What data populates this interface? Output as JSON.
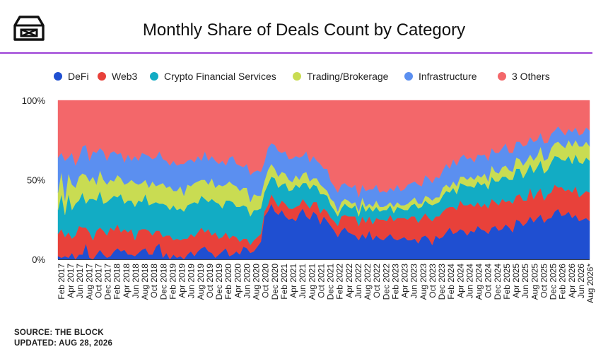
{
  "header": {
    "title": "Monthly Share of Deals Count by Category"
  },
  "footer": {
    "source": "SOURCE: THE BLOCK",
    "updated": "UPDATED: AUG 28, 2026"
  },
  "chart_data": {
    "type": "area",
    "stacked": "percent",
    "ylim": [
      0,
      100
    ],
    "yticks": [
      "0%",
      "50%",
      "100%"
    ],
    "xtick_labels": [
      "Feb 2017",
      "Apr 2017",
      "Jun 2017",
      "Aug 2017",
      "Oct 2017",
      "Dec 2017",
      "Feb 2018",
      "Apr 2018",
      "Jun 2018",
      "Aug 2018",
      "Oct 2018",
      "Dec 2018",
      "Feb 2019",
      "Apr 2019",
      "Jun 2019",
      "Aug 2019",
      "Oct 2019",
      "Dec 2019",
      "Feb 2020",
      "Apr 2020",
      "Jun 2020",
      "Aug 2020",
      "Oct 2020",
      "Dec 2020",
      "Feb 2021",
      "Apr 2021",
      "Jun 2021",
      "Aug 2021",
      "Oct 2021",
      "Dec 2021",
      "Feb 2022",
      "Apr 2022",
      "Jun 2022",
      "Aug 2022",
      "Oct 2022",
      "Dec 2022",
      "Feb 2023",
      "Apr 2023",
      "Jun 2023",
      "Aug 2023",
      "Oct 2023",
      "Dec 2023",
      "Feb 2024",
      "Apr 2024",
      "Jun 2024",
      "Aug 2024",
      "Oct 2024",
      "Dec 2024",
      "Feb 2025",
      "Apr 2025",
      "Jun 2025",
      "Aug 2025",
      "Oct 2025",
      "Dec 2025",
      "Feb 2026",
      "Apr 2026",
      "Jun 2026",
      "Aug 2026*"
    ],
    "legend_position": "top",
    "series": [
      {
        "name": "DeFi",
        "color": "#1f4fd1",
        "values": [
          2,
          1,
          2,
          1,
          4,
          0,
          3,
          3,
          10,
          1,
          0,
          3,
          6,
          3,
          1,
          2,
          5,
          7,
          5,
          6,
          3,
          3,
          2,
          4,
          6,
          7,
          3,
          3,
          8,
          10,
          1,
          4,
          0,
          3,
          1,
          2,
          0,
          3,
          5,
          2,
          5,
          7,
          8,
          5,
          4,
          1,
          3,
          5,
          7,
          2,
          3,
          5,
          3,
          8,
          7,
          4,
          5,
          8,
          11,
          27,
          30,
          35,
          30,
          28,
          31,
          27,
          25,
          26,
          24,
          29,
          32,
          27,
          25,
          30,
          28,
          22,
          27,
          24,
          21,
          18,
          14,
          18,
          20,
          17,
          16,
          15,
          12,
          16,
          13,
          18,
          12,
          15,
          13,
          12,
          14,
          16,
          13,
          12,
          13,
          14,
          12,
          12,
          13,
          10,
          14,
          15,
          13,
          9,
          15,
          13,
          14,
          17,
          20,
          16,
          17,
          19,
          18,
          15,
          18,
          17,
          21,
          19,
          18,
          16,
          20,
          21,
          18,
          19,
          22,
          20,
          17,
          25,
          24,
          21,
          23,
          27,
          24,
          26,
          29,
          23,
          25,
          26,
          30,
          33,
          27,
          28,
          30,
          26,
          28,
          24,
          25,
          26,
          24
        ]
      },
      {
        "name": "Web3",
        "color": "#e8413a",
        "values": [
          14,
          18,
          12,
          16,
          9,
          15,
          18,
          17,
          10,
          16,
          12,
          15,
          14,
          15,
          14,
          18,
          13,
          15,
          12,
          13,
          14,
          16,
          10,
          14,
          13,
          12,
          15,
          12,
          10,
          8,
          13,
          11,
          15,
          9,
          12,
          10,
          13,
          10,
          11,
          12,
          12,
          13,
          9,
          14,
          11,
          16,
          10,
          9,
          10,
          11,
          12,
          9,
          8,
          5,
          6,
          5,
          7,
          6,
          5,
          3,
          4,
          6,
          7,
          5,
          6,
          8,
          7,
          6,
          9,
          5,
          6,
          8,
          7,
          6,
          8,
          7,
          5,
          6,
          5,
          6,
          7,
          9,
          8,
          10,
          11,
          12,
          9,
          11,
          10,
          9,
          10,
          11,
          12,
          13,
          10,
          12,
          11,
          14,
          13,
          12,
          13,
          15,
          14,
          13,
          12,
          14,
          13,
          15,
          12,
          14,
          16,
          15,
          13,
          17,
          14,
          18,
          16,
          19,
          17,
          16,
          15,
          14,
          17,
          16,
          18,
          15,
          16,
          19,
          14,
          17,
          18,
          15,
          17,
          16,
          14,
          18,
          15,
          16,
          17,
          14,
          15,
          16,
          17,
          14,
          18,
          15,
          14,
          16,
          18,
          15,
          16,
          17,
          18
        ]
      },
      {
        "name": "Crypto Financial Services",
        "color": "#12acc4",
        "values": [
          15,
          22,
          14,
          24,
          18,
          20,
          16,
          22,
          15,
          21,
          26,
          19,
          23,
          17,
          21,
          18,
          22,
          17,
          24,
          16,
          20,
          18,
          21,
          19,
          17,
          22,
          16,
          20,
          18,
          17,
          21,
          19,
          16,
          22,
          18,
          20,
          17,
          21,
          19,
          22,
          18,
          20,
          21,
          17,
          23,
          19,
          22,
          18,
          20,
          24,
          21,
          19,
          22,
          21,
          20,
          18,
          19,
          17,
          16,
          12,
          13,
          11,
          14,
          12,
          10,
          13,
          11,
          12,
          14,
          11,
          10,
          13,
          12,
          11,
          10,
          12,
          9,
          10,
          8,
          7,
          6,
          5,
          7,
          6,
          5,
          7,
          6,
          8,
          7,
          6,
          8,
          7,
          5,
          6,
          7,
          6,
          5,
          7,
          6,
          5,
          6,
          7,
          8,
          9,
          7,
          8,
          9,
          10,
          8,
          9,
          10,
          11,
          9,
          12,
          10,
          11,
          13,
          12,
          11,
          12,
          13,
          14,
          13,
          12,
          14,
          13,
          15,
          14,
          16,
          13,
          15,
          17,
          16,
          14,
          18,
          15,
          17,
          16,
          18,
          17,
          15,
          19,
          18,
          20,
          17,
          19,
          21,
          18,
          20,
          22,
          19,
          21,
          20
        ]
      },
      {
        "name": "Trading/Brokerage",
        "color": "#c9dc52",
        "values": [
          11,
          14,
          9,
          13,
          16,
          10,
          15,
          12,
          18,
          11,
          14,
          10,
          13,
          15,
          11,
          12,
          9,
          14,
          10,
          12,
          11,
          13,
          15,
          10,
          12,
          9,
          11,
          14,
          10,
          12,
          13,
          11,
          15,
          9,
          12,
          14,
          10,
          13,
          11,
          12,
          14,
          10,
          12,
          11,
          13,
          9,
          12,
          14,
          10,
          12,
          11,
          13,
          10,
          11,
          12,
          9,
          10,
          9,
          8,
          7,
          9,
          8,
          6,
          7,
          8,
          6,
          7,
          5,
          6,
          5,
          6,
          7,
          5,
          4,
          5,
          6,
          4,
          3,
          4,
          5,
          3,
          4,
          3,
          4,
          3,
          2,
          3,
          4,
          3,
          2,
          3,
          4,
          3,
          2,
          3,
          2,
          4,
          3,
          2,
          3,
          4,
          3,
          4,
          3,
          2,
          3,
          4,
          3,
          4,
          3,
          5,
          4,
          3,
          4,
          5,
          4,
          5,
          4,
          6,
          5,
          4,
          5,
          6,
          5,
          7,
          6,
          5,
          6,
          7,
          6,
          5,
          7,
          6,
          8,
          7,
          6,
          8,
          7,
          9,
          8,
          7,
          9,
          8,
          10,
          9,
          8,
          10,
          11,
          9,
          10,
          11,
          10,
          9
        ]
      },
      {
        "name": "Infrastructure",
        "color": "#5b8ff0",
        "values": [
          22,
          12,
          25,
          10,
          20,
          14,
          12,
          17,
          19,
          13,
          16,
          20,
          14,
          18,
          15,
          17,
          19,
          13,
          16,
          14,
          18,
          12,
          17,
          15,
          19,
          16,
          20,
          14,
          18,
          21,
          15,
          17,
          13,
          19,
          16,
          14,
          20,
          15,
          17,
          13,
          16,
          12,
          18,
          15,
          14,
          17,
          13,
          16,
          12,
          15,
          18,
          14,
          16,
          13,
          15,
          17,
          14,
          16,
          15,
          12,
          14,
          13,
          15,
          16,
          12,
          14,
          13,
          15,
          12,
          14,
          11,
          13,
          12,
          14,
          11,
          13,
          12,
          14,
          11,
          10,
          12,
          11,
          10,
          9,
          10,
          11,
          9,
          8,
          10,
          9,
          11,
          10,
          9,
          10,
          8,
          9,
          10,
          11,
          9,
          10,
          12,
          11,
          10,
          12,
          11,
          13,
          12,
          11,
          13,
          12,
          11,
          13,
          12,
          14,
          13,
          12,
          14,
          13,
          12,
          11,
          13,
          14,
          12,
          13,
          11,
          12,
          13,
          12,
          14,
          11,
          12,
          10,
          11,
          12,
          10,
          11,
          12,
          10,
          9,
          11,
          10,
          9,
          8,
          10,
          9,
          8,
          7,
          9,
          8,
          7,
          8,
          9,
          10
        ]
      },
      {
        "name": "3 Others",
        "color": "#f3676a",
        "values": [
          36,
          33,
          38,
          36,
          33,
          41,
          36,
          29,
          28,
          38,
          32,
          33,
          30,
          32,
          38,
          33,
          32,
          34,
          33,
          39,
          34,
          38,
          35,
          38,
          33,
          34,
          35,
          37,
          36,
          32,
          37,
          38,
          41,
          38,
          41,
          40,
          40,
          38,
          37,
          39,
          35,
          38,
          32,
          38,
          35,
          38,
          40,
          38,
          41,
          36,
          35,
          40,
          41,
          42,
          40,
          47,
          45,
          44,
          45,
          39,
          30,
          27,
          28,
          32,
          33,
          32,
          37,
          37,
          35,
          36,
          35,
          32,
          39,
          35,
          38,
          40,
          43,
          43,
          51,
          54,
          58,
          53,
          52,
          54,
          55,
          53,
          61,
          53,
          57,
          56,
          56,
          53,
          58,
          57,
          58,
          55,
          57,
          53,
          57,
          56,
          53,
          52,
          51,
          53,
          54,
          47,
          49,
          52,
          48,
          49,
          44,
          40,
          43,
          37,
          41,
          36,
          34,
          37,
          36,
          39,
          34,
          35,
          34,
          38,
          30,
          33,
          33,
          30,
          27,
          33,
          33,
          26,
          26,
          29,
          28,
          23,
          27,
          25,
          21,
          27,
          26,
          21,
          19,
          17,
          19,
          22,
          18,
          20,
          17,
          22,
          21,
          17,
          19
        ]
      }
    ]
  }
}
